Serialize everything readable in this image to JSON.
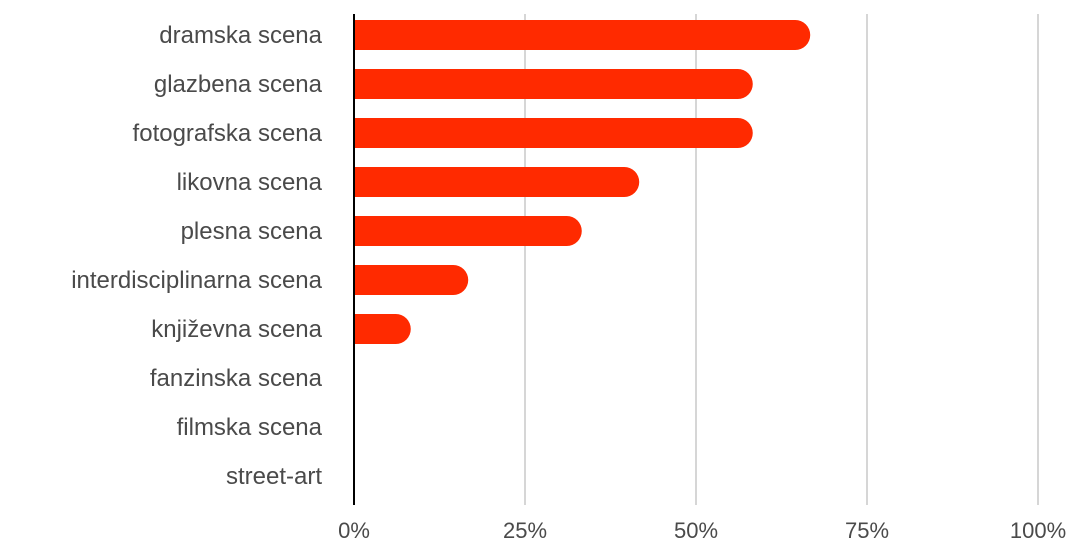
{
  "chart_data": {
    "type": "bar",
    "orientation": "horizontal",
    "categories": [
      "dramska scena",
      "glazbena scena",
      "fotografska scena",
      "likovna scena",
      "plesna scena",
      "interdisciplinarna scena",
      "književna scena",
      "fanzinska scena",
      "filmska scena",
      "street-art"
    ],
    "values": [
      66.7,
      58.3,
      58.3,
      41.7,
      33.3,
      16.7,
      8.3,
      0,
      0,
      0
    ],
    "xlim": [
      0,
      100
    ],
    "x_ticks": [
      0,
      25,
      50,
      75,
      100
    ],
    "x_tick_labels": [
      "0%",
      "25%",
      "50%",
      "75%",
      "100%"
    ],
    "grid": true,
    "bar_color": "#ff2a00",
    "grid_color": "#c8c8c8",
    "axis_color": "#000000"
  }
}
